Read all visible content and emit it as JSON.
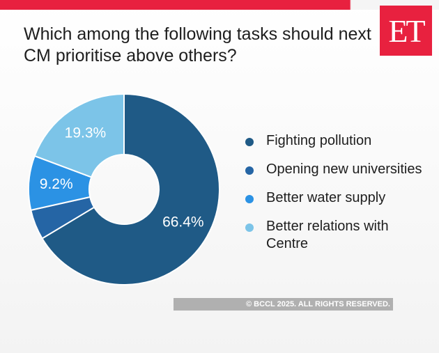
{
  "brand": {
    "logo_text": "ET",
    "accent": "#e8213f"
  },
  "copyright": "© BCCL 2025. ALL RIGHTS RESERVED.",
  "chart_data": {
    "type": "pie",
    "donut": true,
    "title": "Which among the following tasks should next CM prioritise above others?",
    "legend_position": "right",
    "series": [
      {
        "name": "Fighting pollution",
        "value": 66.4,
        "label": "66.4%",
        "color": "#1f5a86"
      },
      {
        "name": "Opening new universities",
        "value": 5.1,
        "label": "",
        "color": "#2565a5"
      },
      {
        "name": "Better water supply",
        "value": 9.2,
        "label": "9.2%",
        "color": "#2b92e4"
      },
      {
        "name": "Better relations with Centre",
        "value": 19.3,
        "label": "19.3%",
        "color": "#7cc4e8"
      }
    ]
  }
}
